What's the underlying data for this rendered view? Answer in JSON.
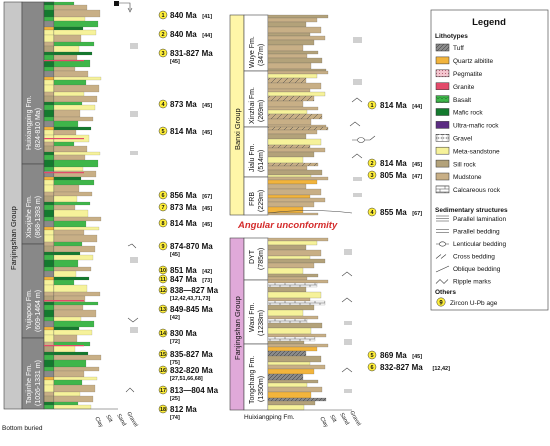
{
  "left_column": {
    "group": "Fanjingshan Group",
    "formations": [
      {
        "name": "Huixiangping Fm.",
        "age": "(824-810 Ma)"
      },
      {
        "name": "Xiaojiahe Fm.",
        "age": "(868-1393 m)"
      },
      {
        "name": "Yujiapou Fm.",
        "age": "(609-1464 m)"
      },
      {
        "name": "Taojinhe Fm.",
        "age": "(1026-1331 m)"
      }
    ],
    "bottom_label": "Bottom buried",
    "axis_labels": [
      "Clay",
      "Silt",
      "Sand",
      "Gravel"
    ],
    "ages": [
      {
        "num": "1",
        "age": "840 Ma",
        "ref": "[41]"
      },
      {
        "num": "2",
        "age": "840 Ma",
        "ref": "[44]"
      },
      {
        "num": "3",
        "age": "831-827 Ma",
        "ref": "[45]"
      },
      {
        "num": "4",
        "age": "873 Ma",
        "ref": "[45]"
      },
      {
        "num": "5",
        "age": "814 Ma",
        "ref": "[45]"
      },
      {
        "num": "6",
        "age": "856 Ma",
        "ref": "[67]"
      },
      {
        "num": "7",
        "age": "873 Ma",
        "ref": "[45]"
      },
      {
        "num": "8",
        "age": "814 Ma",
        "ref": "[45]"
      },
      {
        "num": "9",
        "age": "874-870 Ma",
        "ref": "[45]"
      },
      {
        "num": "10",
        "age": "851 Ma",
        "ref": "[42]"
      },
      {
        "num": "11",
        "age": "847 Ma",
        "ref": "[73]"
      },
      {
        "num": "12",
        "age": "838—827 Ma",
        "ref": "[12,42,43,71,73]"
      },
      {
        "num": "13",
        "age": "849-845 Ma",
        "ref": "[42]"
      },
      {
        "num": "14",
        "age": "830 Ma",
        "ref": "[72]"
      },
      {
        "num": "15",
        "age": "835-827 Ma",
        "ref": "[75]"
      },
      {
        "num": "16",
        "age": "832-820 Ma",
        "ref": "[27,51,66,68]"
      },
      {
        "num": "17",
        "age": "813—804 Ma",
        "ref": "[25]"
      },
      {
        "num": "18",
        "age": "812 Ma",
        "ref": "[74]"
      }
    ]
  },
  "right_upper": {
    "group": "Banxi Group",
    "formations": [
      {
        "name": "Wuye Fm.",
        "thickness": "(347m)"
      },
      {
        "name": "Xinzhai Fm.",
        "thickness": "(269m)"
      },
      {
        "name": "Jialu Fm.",
        "thickness": "(514m)"
      },
      {
        "name": "FRB",
        "thickness": "(229m)"
      }
    ],
    "ages": [
      {
        "num": "1",
        "age": "814 Ma",
        "ref": "[44]"
      },
      {
        "num": "2",
        "age": "814 Ma",
        "ref": "[45]"
      },
      {
        "num": "3",
        "age": "805 Ma",
        "ref": "[47]"
      },
      {
        "num": "4",
        "age": "855 Ma",
        "ref": "[67]"
      }
    ]
  },
  "unconformity": "Angular unconformity",
  "right_lower": {
    "group": "Fanjingshan Group",
    "formations": [
      {
        "name": "DYT",
        "thickness": "(785m)"
      },
      {
        "name": "Waxi Fm.",
        "thickness": "(1238m)"
      },
      {
        "name": "Tongchang Fm.",
        "thickness": "(1350m)"
      }
    ],
    "bottom_label": "Huixiangping Fm.",
    "axis_labels": [
      "Clay",
      "Silt",
      "Sand",
      "Gravel"
    ],
    "ages": [
      {
        "num": "5",
        "age": "869 Ma",
        "ref": "[45]"
      },
      {
        "num": "6",
        "age": "832-827 Ma",
        "ref": "[12,42]"
      }
    ]
  },
  "legend": {
    "title": "Legend",
    "lithotypes_title": "Lithotypes",
    "lithotypes": [
      {
        "label": "Tuff",
        "color": "#8a8a8a",
        "pattern": "tuff"
      },
      {
        "label": "Quartz albitite",
        "color": "#f2b43c",
        "pattern": "solid"
      },
      {
        "label": "Pegmatite",
        "color": "#f4c6cf",
        "pattern": "dots"
      },
      {
        "label": "Granite",
        "color": "#e34a6a",
        "pattern": "solid"
      },
      {
        "label": "Basalt",
        "color": "#3fb64a",
        "pattern": "v"
      },
      {
        "label": "Mafic rock",
        "color": "#137a2e",
        "pattern": "solid"
      },
      {
        "label": "Ultra-mafic rock",
        "color": "#5b2c82",
        "pattern": "solid"
      },
      {
        "label": "Gravel",
        "color": "#ffffff",
        "pattern": "gravel"
      },
      {
        "label": "Meta-sandstone",
        "color": "#f6f29a",
        "pattern": "solid"
      },
      {
        "label": "Sill rock",
        "color": "#b3a27a",
        "pattern": "solid"
      },
      {
        "label": "Mudstone",
        "color": "#c8af86",
        "pattern": "solid"
      },
      {
        "label": "Calcareous rock",
        "color": "#ffffff",
        "pattern": "brick"
      }
    ],
    "sedimentary_title": "Sedimentary structures",
    "sedimentary": [
      {
        "label": "Parallel lamination",
        "icon": "three-lines-icon"
      },
      {
        "label": "Parallel bedding",
        "icon": "two-lines-icon"
      },
      {
        "label": "Lenticular bedding",
        "icon": "lens-icon"
      },
      {
        "label": "Cross bedding",
        "icon": "cross-icon"
      },
      {
        "label": "Oblique bedding",
        "icon": "oblique-icon"
      },
      {
        "label": "Ripple marks",
        "icon": "ripple-icon"
      }
    ],
    "others_title": "Others",
    "others": [
      {
        "num": "9",
        "label": "Zircon U-Pb age"
      }
    ]
  }
}
